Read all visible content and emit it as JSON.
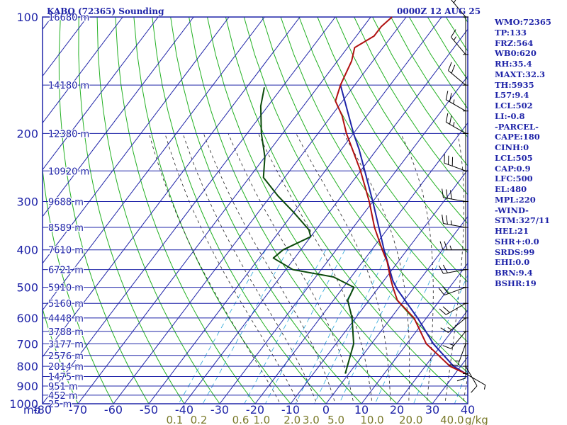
{
  "header": {
    "station": "KABQ (72365) Sounding",
    "time": "0000Z 12 AUG 25"
  },
  "stats": [
    "WMO:72365",
    "TP:133",
    "FRZ:564",
    "WB0:620",
    "RH:35.4",
    "MAXT:32.3",
    "TH:5935",
    "L57:9.4",
    "LCL:502",
    "LI:-0.8",
    "-PARCEL-",
    "CAPE:180",
    "CINH:0",
    "LCL:505",
    "CAP:0.9",
    "LFC:500",
    "EL:480",
    "MPL:220",
    "-WIND-",
    "STM:327/11",
    "HEL:21",
    "SHR+:0.0",
    "SRDS:99",
    "EHI:0.0",
    "BRN:9.4",
    "BSHR:19"
  ],
  "colors": {
    "frame": "#1f24a8",
    "isotherm": "#1f24a8",
    "dry_adiabat": "#22b022",
    "moist_adiabat": "#222222",
    "mixing_ratio": "#2aa6d8",
    "temperature": "#b01010",
    "dewpoint": "#0b4a0b",
    "parcel": "#1f24a8",
    "wind": "#000000",
    "mixing_label": "#7a7a2a"
  },
  "chart_data": {
    "type": "skew-t",
    "pressure_unit": "mb",
    "temp_unit": "C",
    "mixing_unit": "g/kg",
    "xlabel": "mb",
    "mixing_label": "g/kg",
    "pressure_ticks": [
      "100",
      "200",
      "300",
      "400",
      "500",
      "600",
      "700",
      "800",
      "900",
      "1000"
    ],
    "height_labels": [
      {
        "p": 100,
        "label": "16680 m"
      },
      {
        "p": 150,
        "label": "14180 m"
      },
      {
        "p": 200,
        "label": "12380 m"
      },
      {
        "p": 250,
        "label": "10920 m"
      },
      {
        "p": 300,
        "label": "9688 m"
      },
      {
        "p": 350,
        "label": "8589 m"
      },
      {
        "p": 400,
        "label": "7610 m"
      },
      {
        "p": 450,
        "label": "6721 m"
      },
      {
        "p": 500,
        "label": "5910 m"
      },
      {
        "p": 550,
        "label": "5160 m"
      },
      {
        "p": 600,
        "label": "4448 m"
      },
      {
        "p": 650,
        "label": "3788 m"
      },
      {
        "p": 700,
        "label": "3177 m"
      },
      {
        "p": 750,
        "label": "2576 m"
      },
      {
        "p": 800,
        "label": "2014 m"
      },
      {
        "p": 850,
        "label": "1475 m"
      },
      {
        "p": 900,
        "label": "951 m"
      },
      {
        "p": 950,
        "label": "452 m"
      },
      {
        "p": 1000,
        "label": "25 m"
      }
    ],
    "temp_ticks": [
      "-80",
      "-70",
      "-60",
      "-50",
      "-40",
      "-30",
      "-20",
      "-10",
      "0",
      "10",
      "20",
      "30",
      "40"
    ],
    "mixing_ratios": [
      "0.1",
      "0.2",
      "0.6",
      "1.0",
      "2.0",
      "3.0",
      "5.0",
      "10.0",
      "20.0",
      "40.0"
    ],
    "temperature": [
      {
        "p": 836,
        "t": 33
      },
      {
        "p": 800,
        "t": 27
      },
      {
        "p": 700,
        "t": 15.5
      },
      {
        "p": 600,
        "t": 6.5
      },
      {
        "p": 540,
        "t": -2
      },
      {
        "p": 500,
        "t": -6
      },
      {
        "p": 470,
        "t": -9
      },
      {
        "p": 430,
        "t": -13
      },
      {
        "p": 400,
        "t": -17
      },
      {
        "p": 350,
        "t": -24
      },
      {
        "p": 300,
        "t": -31
      },
      {
        "p": 250,
        "t": -40
      },
      {
        "p": 200,
        "t": -52
      },
      {
        "p": 180,
        "t": -57
      },
      {
        "p": 165,
        "t": -62
      },
      {
        "p": 150,
        "t": -64
      },
      {
        "p": 130,
        "t": -66
      },
      {
        "p": 120,
        "t": -68
      },
      {
        "p": 112,
        "t": -65
      },
      {
        "p": 106,
        "t": -65
      },
      {
        "p": 100,
        "t": -64
      }
    ],
    "dewpoint": [
      {
        "p": 836,
        "t": -1
      },
      {
        "p": 700,
        "t": -5
      },
      {
        "p": 600,
        "t": -11
      },
      {
        "p": 540,
        "t": -16
      },
      {
        "p": 500,
        "t": -17
      },
      {
        "p": 470,
        "t": -25
      },
      {
        "p": 450,
        "t": -38
      },
      {
        "p": 420,
        "t": -46
      },
      {
        "p": 400,
        "t": -45
      },
      {
        "p": 370,
        "t": -40
      },
      {
        "p": 355,
        "t": -42
      },
      {
        "p": 320,
        "t": -50
      },
      {
        "p": 290,
        "t": -58
      },
      {
        "p": 260,
        "t": -66
      },
      {
        "p": 230,
        "t": -70
      },
      {
        "p": 200,
        "t": -76
      },
      {
        "p": 170,
        "t": -82
      },
      {
        "p": 152,
        "t": -85
      }
    ],
    "parcel": [
      {
        "p": 836,
        "t": 33
      },
      {
        "p": 800,
        "t": 28
      },
      {
        "p": 700,
        "t": 17.5
      },
      {
        "p": 600,
        "t": 7.5
      },
      {
        "p": 505,
        "t": -4.5
      },
      {
        "p": 480,
        "t": -7.5
      },
      {
        "p": 400,
        "t": -16.5
      },
      {
        "p": 300,
        "t": -30
      },
      {
        "p": 220,
        "t": -45
      },
      {
        "p": 200,
        "t": -50
      },
      {
        "p": 150,
        "t": -64
      }
    ],
    "winds": [
      {
        "p": 836,
        "dir": 120,
        "spd": 5
      },
      {
        "p": 800,
        "dir": 150,
        "spd": 10
      },
      {
        "p": 750,
        "dir": 180,
        "spd": 10
      },
      {
        "p": 700,
        "dir": 200,
        "spd": 15
      },
      {
        "p": 650,
        "dir": 220,
        "spd": 15
      },
      {
        "p": 600,
        "dir": 230,
        "spd": 15
      },
      {
        "p": 550,
        "dir": 240,
        "spd": 20
      },
      {
        "p": 500,
        "dir": 250,
        "spd": 20
      },
      {
        "p": 450,
        "dir": 260,
        "spd": 20
      },
      {
        "p": 400,
        "dir": 270,
        "spd": 25
      },
      {
        "p": 350,
        "dir": 280,
        "spd": 25
      },
      {
        "p": 300,
        "dir": 280,
        "spd": 30
      },
      {
        "p": 250,
        "dir": 290,
        "spd": 30
      },
      {
        "p": 200,
        "dir": 300,
        "spd": 25
      },
      {
        "p": 175,
        "dir": 300,
        "spd": 25
      },
      {
        "p": 150,
        "dir": 310,
        "spd": 20
      },
      {
        "p": 125,
        "dir": 320,
        "spd": 15
      },
      {
        "p": 100,
        "dir": 320,
        "spd": 15
      }
    ]
  }
}
